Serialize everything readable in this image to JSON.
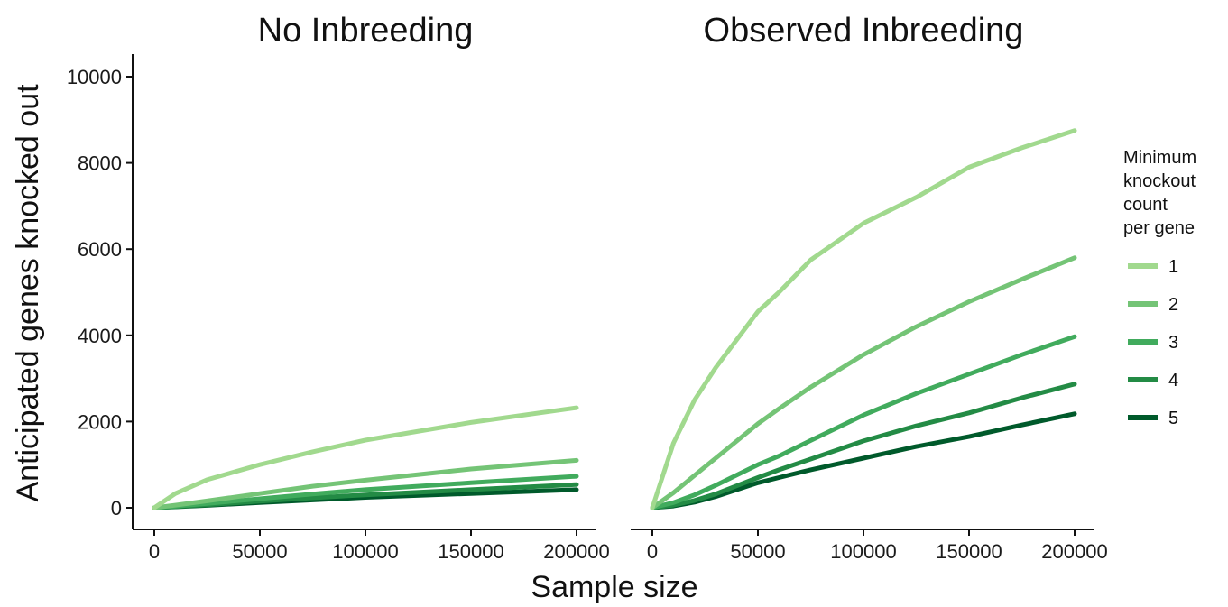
{
  "figure": {
    "ylabel": "Anticipated genes knocked out",
    "xlabel": "Sample size",
    "legend": {
      "title_lines": [
        "Minimum",
        "knockout",
        "count",
        "per gene"
      ],
      "entries": [
        "1",
        "2",
        "3",
        "4",
        "5"
      ],
      "colors": [
        "#a1d98e",
        "#74c476",
        "#41ab5d",
        "#238b45",
        "#005a2b"
      ],
      "placement": "right"
    }
  },
  "chart_data": [
    {
      "type": "line",
      "title": "No Inbreeding",
      "xlim": [
        0,
        200000
      ],
      "ylim": [
        0,
        10000
      ],
      "x_ticks": [
        0,
        50000,
        100000,
        150000,
        200000
      ],
      "y_ticks": [
        0,
        2000,
        4000,
        6000,
        8000,
        10000
      ],
      "grid": false,
      "x": [
        0,
        10000,
        25000,
        50000,
        75000,
        100000,
        150000,
        200000
      ],
      "series": [
        {
          "name": "1",
          "values": [
            0,
            330,
            650,
            1000,
            1300,
            1570,
            1980,
            2320
          ]
        },
        {
          "name": "2",
          "values": [
            0,
            60,
            160,
            330,
            500,
            640,
            900,
            1100
          ]
        },
        {
          "name": "3",
          "values": [
            0,
            35,
            100,
            210,
            320,
            420,
            580,
            730
          ]
        },
        {
          "name": "4",
          "values": [
            0,
            25,
            70,
            150,
            230,
            300,
            420,
            540
          ]
        },
        {
          "name": "5",
          "values": [
            0,
            20,
            55,
            120,
            180,
            240,
            330,
            420
          ]
        }
      ]
    },
    {
      "type": "line",
      "title": "Observed Inbreeding",
      "xlim": [
        0,
        200000
      ],
      "ylim": [
        0,
        10000
      ],
      "x_ticks": [
        0,
        50000,
        100000,
        150000,
        200000
      ],
      "y_ticks": [
        0,
        2000,
        4000,
        6000,
        8000,
        10000
      ],
      "grid": false,
      "x": [
        0,
        10000,
        20000,
        30000,
        50000,
        60000,
        75000,
        100000,
        125000,
        150000,
        175000,
        200000
      ],
      "series": [
        {
          "name": "1",
          "values": [
            0,
            1500,
            2500,
            3250,
            4550,
            5000,
            5750,
            6600,
            7200,
            7900,
            8350,
            8750
          ]
        },
        {
          "name": "2",
          "values": [
            0,
            350,
            750,
            1150,
            1950,
            2300,
            2800,
            3550,
            4200,
            4780,
            5300,
            5800
          ]
        },
        {
          "name": "3",
          "values": [
            0,
            120,
            300,
            520,
            1000,
            1200,
            1560,
            2150,
            2650,
            3100,
            3550,
            3970
          ]
        },
        {
          "name": "4",
          "values": [
            0,
            60,
            170,
            320,
            700,
            880,
            1130,
            1550,
            1900,
            2200,
            2550,
            2870
          ]
        },
        {
          "name": "5",
          "values": [
            0,
            40,
            130,
            260,
            580,
            700,
            880,
            1150,
            1420,
            1650,
            1920,
            2180
          ]
        }
      ]
    }
  ]
}
